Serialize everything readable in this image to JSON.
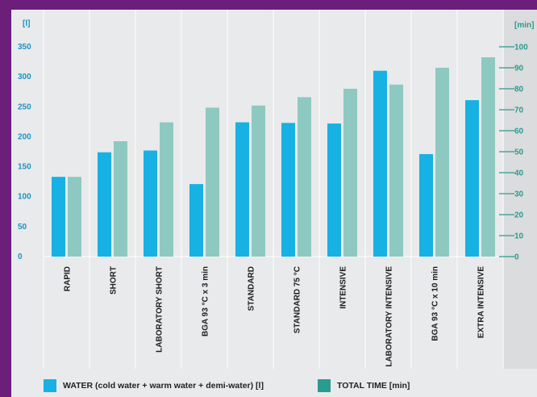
{
  "chart_data": {
    "type": "bar",
    "categories": [
      "RAPID",
      "SHORT",
      "LABORATORY SHORT",
      "BGA 93 °C x 3 min",
      "STANDARD",
      "STANDARD 75 °C",
      "INTENSIVE",
      "LABORATORY INTENSIVE",
      "BGA 93 °C x 10 min",
      "EXTRA INTENSIVE"
    ],
    "series": [
      {
        "name": "WATER (cold water + warm water + demi-water) [l]",
        "axis": "left",
        "color": "#17b1e3",
        "values": [
          133,
          174,
          177,
          121,
          224,
          223,
          222,
          310,
          171,
          261
        ]
      },
      {
        "name": "TOTAL TIME [min]",
        "axis": "right",
        "color": "#8ec9c1",
        "values": [
          38,
          55,
          64,
          71,
          72,
          76,
          80,
          82,
          90,
          95
        ]
      }
    ],
    "left_axis": {
      "unit": "[l]",
      "ticks": [
        "0",
        "50",
        "100",
        "150",
        "200",
        "250",
        "300",
        "350"
      ],
      "ylim": [
        0,
        350
      ],
      "color": "#1a92c9"
    },
    "right_axis": {
      "unit": "[min]",
      "ticks": [
        "0",
        "10",
        "20",
        "30",
        "40",
        "50",
        "60",
        "70",
        "80",
        "90",
        "100"
      ],
      "ylim": [
        0,
        100
      ],
      "color": "#2a9b8f"
    },
    "legend_colors": {
      "water": "#17b1e3",
      "time": "#2a9b8f"
    },
    "grid": "vertical",
    "legend_position": "bottom"
  }
}
